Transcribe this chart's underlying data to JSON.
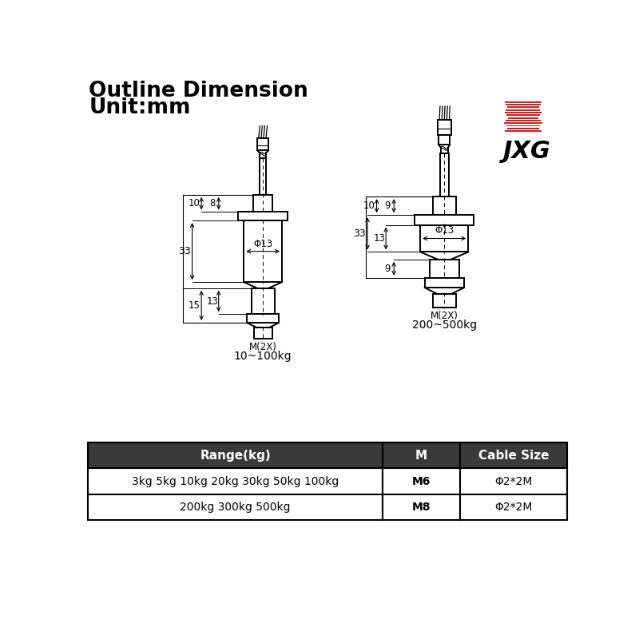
{
  "title_line1": "Outline Dimension",
  "title_line2": "Unit:mm",
  "bg_color": "#ffffff",
  "line_color": "#000000",
  "table_header_bg": "#3a3a3a",
  "table_header_fg": "#ffffff",
  "table_row_bg": "#ffffff",
  "table_border": "#000000",
  "table_rows": [
    [
      "3kg 5kg 10kg 20kg 30kg 50kg 100kg",
      "M6",
      "Φ2*2M"
    ],
    [
      "200kg 300kg 500kg",
      "M8",
      "Φ2*2M"
    ]
  ],
  "table_headers": [
    "Range(kg)",
    "M",
    "Cable Size"
  ],
  "label_10_100": "10~100kg",
  "label_200_500": "200~500kg",
  "jxg_color": "#cc2222",
  "jxg_bar_colors": [
    "#cc2222",
    "#cc2222",
    "#cc2222",
    "#cc2222",
    "#cc2222",
    "#cc2222",
    "#cc2222",
    "#cc2222",
    "#cc2222",
    "#cc2222"
  ]
}
